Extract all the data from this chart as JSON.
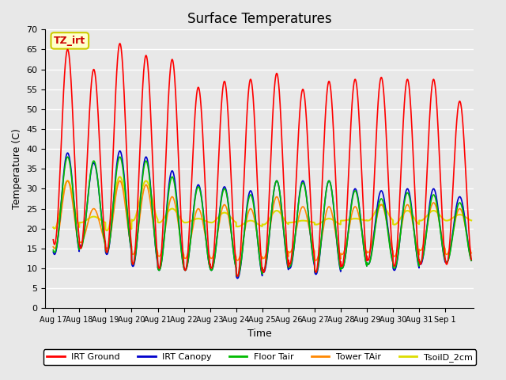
{
  "title": "Surface Temperatures",
  "xlabel": "Time",
  "ylabel": "Temperature (C)",
  "annotation_text": "TZ_irt",
  "annotation_bg": "#ffffcc",
  "annotation_border": "#cccc00",
  "ylim": [
    0,
    70
  ],
  "yticks": [
    0,
    5,
    10,
    15,
    20,
    25,
    30,
    35,
    40,
    45,
    50,
    55,
    60,
    65,
    70
  ],
  "plot_bg": "#e8e8e8",
  "grid_color": "#ffffff",
  "legend": [
    {
      "label": "IRT Ground",
      "color": "#ff0000"
    },
    {
      "label": "IRT Canopy",
      "color": "#0000cc"
    },
    {
      "label": "Floor Tair",
      "color": "#00bb00"
    },
    {
      "label": "Tower TAir",
      "color": "#ff8800"
    },
    {
      "label": "TsoilD_2cm",
      "color": "#dddd00"
    }
  ],
  "xtick_labels": [
    "Aug 17",
    "Aug 18",
    "Aug 19",
    "Aug 20",
    "Aug 21",
    "Aug 22",
    "Aug 23",
    "Aug 24",
    "Aug 25",
    "Aug 26",
    "Aug 27",
    "Aug 28",
    "Aug 29",
    "Aug 30",
    "Aug 31",
    "Sep 1"
  ],
  "n_cycles": 16,
  "irt_ground_peaks": [
    65.0,
    60.0,
    66.5,
    63.5,
    62.5,
    55.5,
    57.0,
    57.5,
    59.0,
    55.0,
    57.0,
    57.5,
    58.0,
    57.5,
    57.5,
    52.0
  ],
  "irt_ground_mins": [
    16.0,
    15.0,
    14.0,
    11.0,
    10.0,
    9.5,
    10.0,
    8.0,
    9.0,
    11.0,
    9.0,
    10.5,
    12.0,
    10.5,
    11.0,
    11.0
  ],
  "irt_canopy_peaks": [
    39.0,
    36.5,
    39.5,
    38.0,
    34.5,
    31.0,
    30.5,
    29.5,
    32.0,
    32.0,
    32.0,
    30.0,
    29.5,
    30.0,
    30.0,
    28.0
  ],
  "irt_canopy_mins": [
    13.5,
    15.5,
    13.5,
    10.5,
    9.5,
    9.5,
    9.5,
    7.5,
    9.0,
    10.0,
    8.5,
    10.0,
    11.0,
    9.5,
    11.0,
    11.5
  ],
  "floor_peaks": [
    38.0,
    37.0,
    38.0,
    37.0,
    33.0,
    30.5,
    30.0,
    28.5,
    32.0,
    31.5,
    32.0,
    29.5,
    27.5,
    29.0,
    28.5,
    26.5
  ],
  "floor_mins": [
    14.0,
    15.0,
    14.0,
    11.0,
    9.5,
    9.5,
    9.5,
    8.0,
    9.5,
    10.5,
    9.0,
    10.0,
    11.0,
    10.0,
    11.5,
    11.5
  ],
  "tower_peaks": [
    32.0,
    25.0,
    32.0,
    31.0,
    28.0,
    25.0,
    26.0,
    25.0,
    28.0,
    25.5,
    25.5,
    25.5,
    26.0,
    26.0,
    26.5,
    25.0
  ],
  "tower_mins": [
    15.0,
    16.5,
    15.0,
    13.5,
    13.0,
    12.5,
    12.5,
    12.0,
    12.5,
    14.0,
    12.0,
    13.5,
    14.0,
    13.0,
    14.5,
    13.5
  ],
  "tsoil_peaks": [
    32.0,
    23.0,
    33.0,
    32.0,
    25.0,
    22.5,
    24.0,
    22.0,
    24.5,
    22.0,
    22.5,
    22.5,
    26.0,
    24.5,
    24.5,
    23.5
  ],
  "tsoil_mins": [
    20.0,
    21.5,
    19.5,
    22.0,
    21.5,
    21.5,
    21.5,
    20.5,
    21.0,
    21.5,
    21.0,
    22.0,
    22.0,
    21.0,
    22.0,
    22.0
  ],
  "peak_phase": 0.55,
  "min_phase": 0.05
}
